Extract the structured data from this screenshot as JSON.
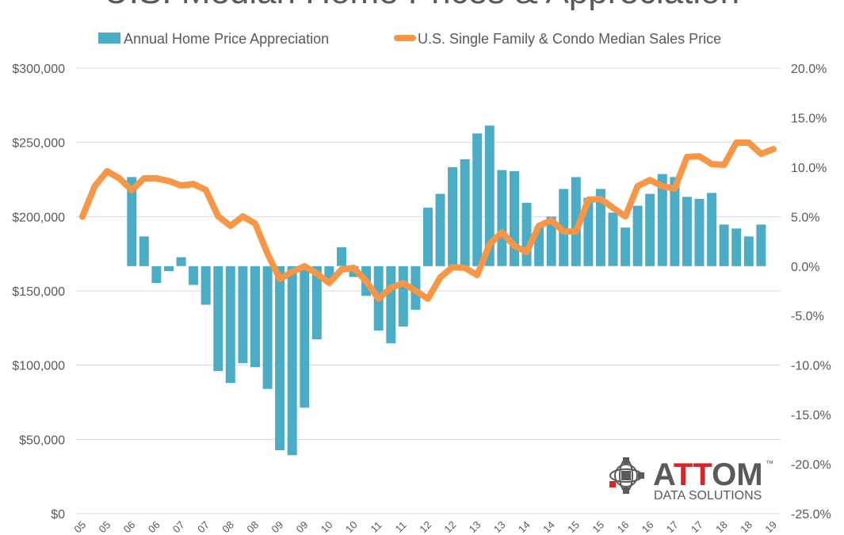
{
  "chart_data": {
    "type": "bar+line",
    "title": "U.S. Median Home Prices & Appreciation",
    "legend": {
      "placement": "top",
      "entries": [
        {
          "label": "Annual Home Price Appreciation",
          "type": "bar",
          "color": "#4bacc6"
        },
        {
          "label": "U.S. Single Family & Condo Median Sales Price",
          "type": "line",
          "color": "#f79646"
        }
      ]
    },
    "x_tick_labels": [
      "05",
      "05",
      "06",
      "06",
      "07",
      "07",
      "08",
      "08",
      "09",
      "09",
      "10",
      "10",
      "11",
      "11",
      "12",
      "12",
      "13",
      "13",
      "14",
      "14",
      "15",
      "15",
      "16",
      "16",
      "17",
      "17",
      "18",
      "18",
      "19"
    ],
    "left_axis": {
      "label": "",
      "range": [
        0,
        300000
      ],
      "ticks": [
        "$0",
        "$50,000",
        "$100,000",
        "$150,000",
        "$200,000",
        "$250,000",
        "$300,000"
      ]
    },
    "right_axis": {
      "label": "",
      "range": [
        -25,
        20
      ],
      "ticks": [
        "-25.0%",
        "-20.0%",
        "-15.0%",
        "-10.0%",
        "-5.0%",
        "0.0%",
        "5.0%",
        "10.0%",
        "15.0%",
        "20.0%"
      ]
    },
    "grid": true,
    "quarters_start": "2005 Q1",
    "series": [
      {
        "name": "U.S. Single Family & Condo Median Sales Price",
        "type": "line",
        "axis": "left",
        "start_index": 0,
        "values": [
          200000,
          220500,
          230600,
          225800,
          217800,
          225800,
          225800,
          224000,
          221000,
          222000,
          218000,
          200200,
          193800,
          200200,
          195400,
          175100,
          158000,
          162800,
          166600,
          161700,
          155300,
          164400,
          165500,
          156400,
          144700,
          152100,
          155300,
          150000,
          144700,
          159000,
          166000,
          165500,
          160700,
          181500,
          189500,
          180400,
          176200,
          193800,
          197500,
          190000,
          190000,
          211400,
          211900,
          206000,
          200200,
          220500,
          224700,
          220500,
          218900,
          240200,
          240700,
          235400,
          234900,
          249800,
          249800,
          242300,
          245500
        ]
      },
      {
        "name": "Annual Home Price Appreciation",
        "type": "bar",
        "axis": "right",
        "unit": "%",
        "start_index": 4,
        "values": [
          9.0,
          3.0,
          -1.7,
          -0.5,
          0.9,
          -1.9,
          -3.9,
          -10.6,
          -11.8,
          -9.8,
          -10.2,
          -12.4,
          -18.6,
          -19.1,
          -14.3,
          -7.4,
          -1.3,
          1.9,
          -1.1,
          -3.0,
          -6.5,
          -7.8,
          -6.1,
          -4.4,
          5.9,
          7.3,
          10.0,
          10.8,
          13.4,
          14.2,
          9.7,
          9.6,
          6.4,
          4.0,
          5.0,
          7.8,
          9.0,
          6.9,
          7.8,
          5.4,
          3.9,
          6.1,
          7.3,
          9.3,
          9.0,
          7.0,
          6.8,
          7.4,
          4.2,
          3.8,
          3.0,
          4.2
        ]
      }
    ]
  },
  "logo": {
    "name_prefix": "A",
    "name_highlight": "TT",
    "name_suffix": "OM",
    "trademark": "™",
    "tagline": "DATA SOLUTIONS",
    "colors": {
      "gray": "#5a5a5a",
      "red": "#d9252a"
    }
  }
}
